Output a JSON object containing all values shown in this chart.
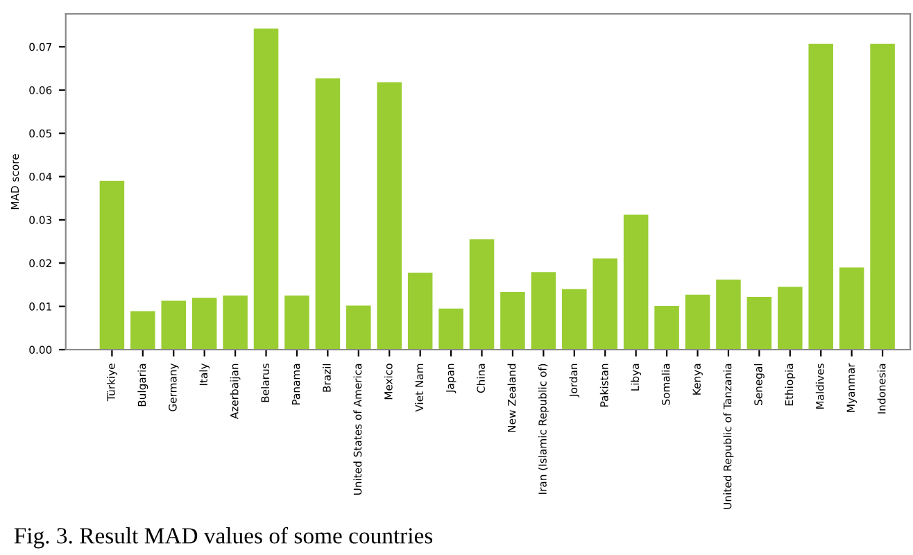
{
  "chart_data": {
    "type": "bar",
    "ylabel": "MAD score",
    "categories": [
      "Türkiye",
      "Bulgaria",
      "Germany",
      "Italy",
      "Azerbaijan",
      "Belarus",
      "Panama",
      "Brazil",
      "United States of America",
      "Mexico",
      "Viet Nam",
      "Japan",
      "China",
      "New Zealand",
      "Iran (Islamic Republic of)",
      "Jordan",
      "Pakistan",
      "Libya",
      "Somalia",
      "Kenya",
      "United Republic of Tanzania",
      "Senegal",
      "Ethiopia",
      "Maldives",
      "Myanmar",
      "Indonesia"
    ],
    "values": [
      0.039,
      0.0089,
      0.0113,
      0.012,
      0.0125,
      0.0742,
      0.0125,
      0.0627,
      0.0102,
      0.0618,
      0.0178,
      0.0095,
      0.0255,
      0.0133,
      0.0179,
      0.014,
      0.0211,
      0.0312,
      0.0101,
      0.0127,
      0.0162,
      0.0122,
      0.0145,
      0.0707,
      0.019,
      0.0707
    ],
    "color": "#9acd32",
    "ylim": [
      0,
      0.0776
    ],
    "yticks": [
      {
        "value": 0,
        "label": "0.00"
      },
      {
        "value": 0.01,
        "label": "0.01"
      },
      {
        "value": 0.02,
        "label": "0.02"
      },
      {
        "value": 0.03,
        "label": "0.03"
      },
      {
        "value": 0.04,
        "label": "0.04"
      },
      {
        "value": 0.05,
        "label": "0.05"
      },
      {
        "value": 0.06,
        "label": "0.06"
      },
      {
        "value": 0.07,
        "label": "0.07"
      }
    ],
    "grid": false,
    "annotations": [
      "Fig. 3. Result MAD values of some countries"
    ]
  }
}
